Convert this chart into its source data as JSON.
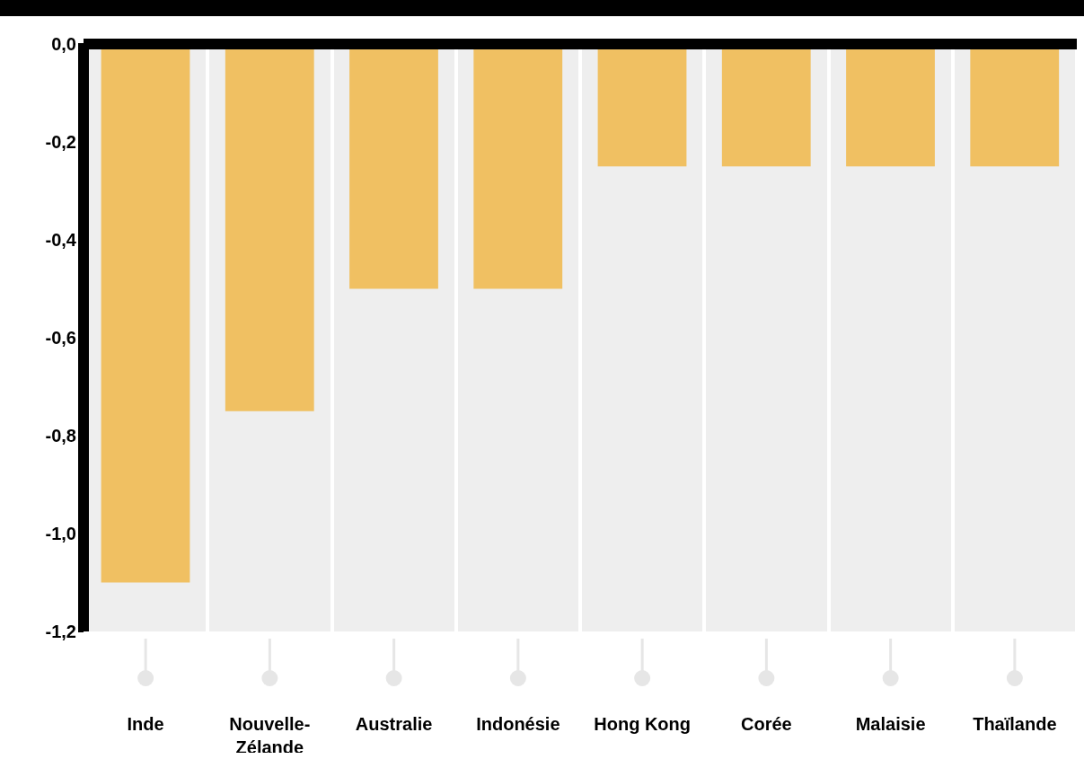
{
  "chart_data": {
    "type": "bar",
    "categories": [
      "Inde",
      "Nouvelle-Zélande",
      "Australie",
      "Indonésie",
      "Hong Kong",
      "Corée",
      "Malaisie",
      "Thaïlande"
    ],
    "values": [
      -1.1,
      -0.75,
      -0.5,
      -0.5,
      -0.25,
      -0.25,
      -0.25,
      -0.25
    ],
    "color": "#f0c062",
    "ylim": [
      -1.2,
      0
    ],
    "yticks": [
      {
        "value": 0,
        "label": "0,0"
      },
      {
        "value": -0.2,
        "label": "-0,2"
      },
      {
        "value": -0.4,
        "label": "-0,4"
      },
      {
        "value": -0.6,
        "label": "-0,6"
      },
      {
        "value": -0.8,
        "label": "-0,8"
      },
      {
        "value": -1,
        "label": "-1,0"
      },
      {
        "value": -1.2,
        "label": "-1,2"
      }
    ],
    "grid": false,
    "legend": false
  }
}
